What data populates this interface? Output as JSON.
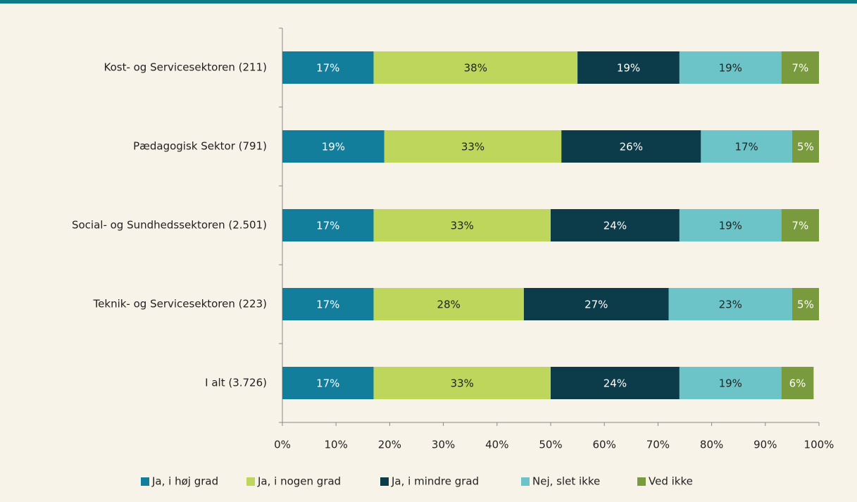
{
  "chart_data": {
    "type": "stacked_barh",
    "categories": [
      "Kost- og Servicesektoren (211)",
      "Pædagogisk Sektor (791)",
      "Social- og Sundhedssektoren (2.501)",
      "Teknik- og Servicesektoren (223)",
      "I alt (3.726)"
    ],
    "series": [
      {
        "name": "Ja, i høj grad",
        "color": "#137e9c",
        "values": [
          17,
          19,
          17,
          17,
          17
        ],
        "value_labels": [
          "17%",
          "19%",
          "17%",
          "17%",
          "17%"
        ]
      },
      {
        "name": "Ja, i nogen grad",
        "color": "#bdd65b",
        "values": [
          38,
          33,
          33,
          28,
          33
        ],
        "value_labels": [
          "38%",
          "33%",
          "33%",
          "28%",
          "33%"
        ]
      },
      {
        "name": "Ja, i mindre grad",
        "color": "#0c3c4a",
        "values": [
          19,
          26,
          24,
          27,
          24
        ],
        "value_labels": [
          "19%",
          "26%",
          "24%",
          "27%",
          "24%"
        ]
      },
      {
        "name": "Nej, slet ikke",
        "color": "#6cc4c8",
        "values": [
          19,
          17,
          19,
          23,
          19
        ],
        "value_labels": [
          "19%",
          "17%",
          "19%",
          "23%",
          "19%"
        ]
      },
      {
        "name": "Ved ikke",
        "color": "#7a9a3e",
        "values": [
          7,
          5,
          7,
          5,
          6
        ],
        "value_labels": [
          "7%",
          "5%",
          "7%",
          "5%",
          "6%"
        ]
      }
    ],
    "xlim": [
      0,
      100
    ],
    "xticks": [
      {
        "value": 0,
        "label": "0%"
      },
      {
        "value": 10,
        "label": "10%"
      },
      {
        "value": 20,
        "label": "20%"
      },
      {
        "value": 30,
        "label": "30%"
      },
      {
        "value": 40,
        "label": "40%"
      },
      {
        "value": 50,
        "label": "50%"
      },
      {
        "value": 60,
        "label": "60%"
      },
      {
        "value": 70,
        "label": "70%"
      },
      {
        "value": 80,
        "label": "80%"
      },
      {
        "value": 90,
        "label": "90%"
      },
      {
        "value": 100,
        "label": "100%"
      }
    ],
    "legend": "bottom"
  }
}
